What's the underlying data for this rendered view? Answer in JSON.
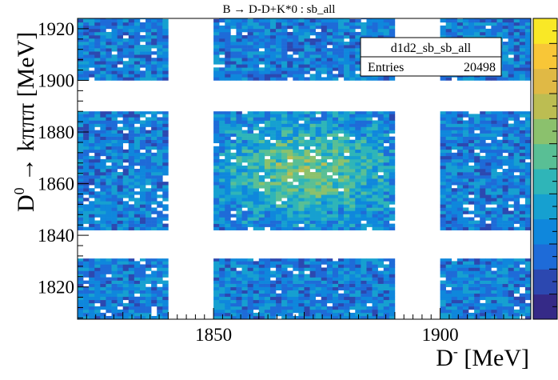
{
  "chart_data": {
    "type": "heatmap",
    "title": "B → D-D+K*0 : sb_all",
    "xlabel": "D",
    "xlabel_sup": "-",
    "xlabel_unit": " [MeV]",
    "ylabel": "D",
    "ylabel_sup": "0",
    "ylabel_rest": " → kπππ [MeV]",
    "xlim": [
      1820,
      1920
    ],
    "ylim": [
      1807.5,
      1924
    ],
    "xticks": [
      1850,
      1900
    ],
    "yticks": [
      1820,
      1840,
      1860,
      1880,
      1900,
      1920
    ],
    "bin_width": 1.25,
    "x_sideband_bands": [
      [
        1820,
        1840
      ],
      [
        1850,
        1890
      ],
      [
        1900,
        1920
      ]
    ],
    "y_sideband_bands": [
      [
        1807.5,
        1831
      ],
      [
        1842,
        1888
      ],
      [
        1900,
        1924
      ]
    ],
    "peak_x": 1870,
    "peak_y": 1865,
    "z_min": 0,
    "z_max": 12,
    "colormap": [
      "#352a87",
      "#2c48b0",
      "#1e6bd8",
      "#0f87dc",
      "#16a0d0",
      "#2fb5b8",
      "#59bf95",
      "#8bc16d",
      "#bcbd52",
      "#e0b945",
      "#f8c637",
      "#f9e826"
    ],
    "grid": false,
    "legend": "top-right"
  },
  "stats": {
    "name": "d1d2_sb_sb_all",
    "entries_label": "Entries",
    "entries_value": "20498"
  }
}
